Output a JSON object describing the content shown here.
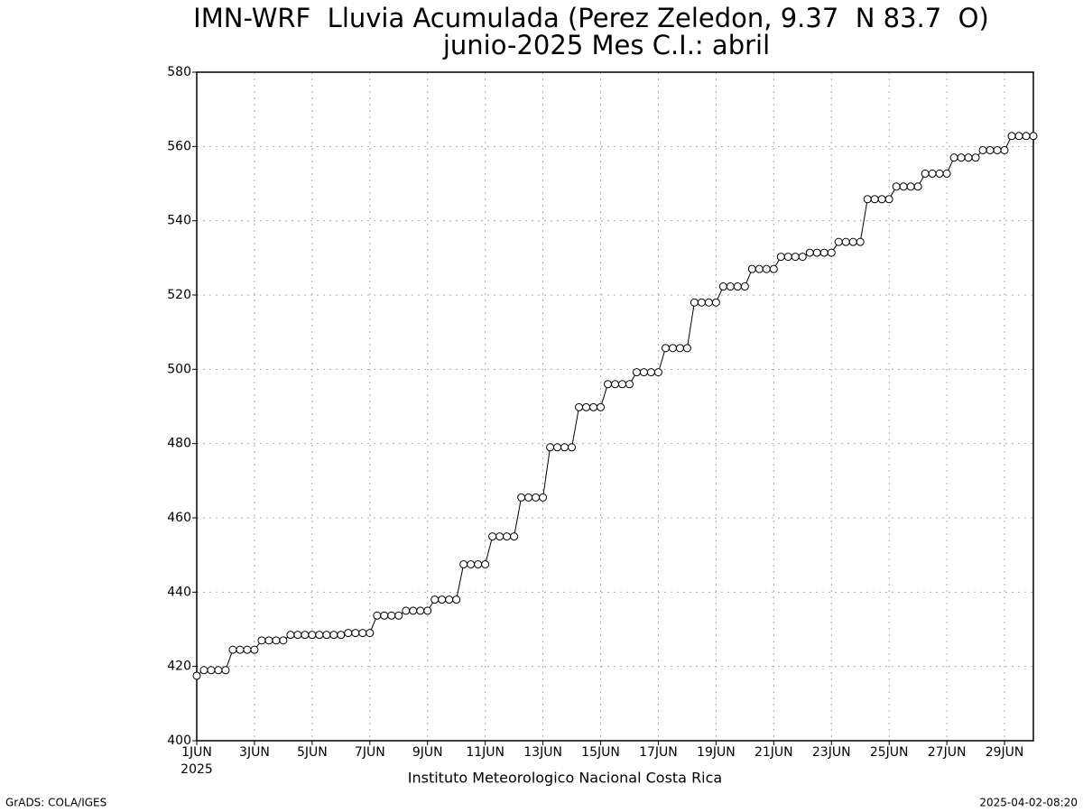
{
  "chart_data": {
    "type": "line",
    "title": "IMN-WRF  Lluvia Acumulada (Perez Zeledon, 9.37  N 83.7  O)",
    "subtitle": "junio-2025 Mes C.I.: abril",
    "year_label": "2025",
    "footer": "Instituto Meteorologico Nacional Costa Rica",
    "credit": "GrADS: COLA/IGES",
    "timestamp": "2025-04-02-08:20",
    "color": "#000000",
    "marker_fill": "#ffffff",
    "grid": true,
    "x": [
      1,
      1.25,
      1.5,
      1.75,
      2,
      2.25,
      2.5,
      2.75,
      3,
      3.25,
      3.5,
      3.75,
      4,
      4.25,
      4.5,
      4.75,
      5,
      5.25,
      5.5,
      5.75,
      6,
      6.25,
      6.5,
      6.75,
      7,
      7.25,
      7.5,
      7.75,
      8,
      8.25,
      8.5,
      8.75,
      9,
      9.25,
      9.5,
      9.75,
      10,
      10.25,
      10.5,
      10.75,
      11,
      11.25,
      11.5,
      11.75,
      12,
      12.25,
      12.5,
      12.75,
      13,
      13.25,
      13.5,
      13.75,
      14,
      14.25,
      14.5,
      14.75,
      15,
      15.25,
      15.5,
      15.75,
      16,
      16.25,
      16.5,
      16.75,
      17,
      17.25,
      17.5,
      17.75,
      18,
      18.25,
      18.5,
      18.75,
      19,
      19.25,
      19.5,
      19.75,
      20,
      20.25,
      20.5,
      20.75,
      21,
      21.25,
      21.5,
      21.75,
      22,
      22.25,
      22.5,
      22.75,
      23,
      23.25,
      23.5,
      23.75,
      24,
      24.25,
      24.5,
      24.75,
      25,
      25.25,
      25.5,
      25.75,
      26,
      26.25,
      26.5,
      26.75,
      27,
      27.25,
      27.5,
      27.75,
      28,
      28.25,
      28.5,
      28.75,
      29,
      29.25,
      29.5,
      29.75,
      30
    ],
    "values": [
      417.5,
      419,
      419,
      419,
      419,
      424.5,
      424.5,
      424.5,
      424.5,
      427,
      427,
      427,
      427,
      428.5,
      428.5,
      428.5,
      428.5,
      428.5,
      428.5,
      428.5,
      428.5,
      429,
      429,
      429,
      429,
      433.7,
      433.7,
      433.7,
      433.7,
      435,
      435,
      435,
      435,
      438,
      438,
      438,
      438,
      447.5,
      447.5,
      447.5,
      447.5,
      455,
      455,
      455,
      455,
      465.5,
      465.5,
      465.5,
      465.5,
      479,
      479,
      479,
      479,
      489.8,
      489.8,
      489.8,
      489.8,
      496,
      496,
      496,
      496,
      499.2,
      499.2,
      499.2,
      499.2,
      505.7,
      505.7,
      505.7,
      505.7,
      518,
      518,
      518,
      518,
      522.3,
      522.3,
      522.3,
      522.3,
      527,
      527,
      527,
      527,
      530.3,
      530.3,
      530.3,
      530.3,
      531.4,
      531.4,
      531.4,
      531.4,
      534.3,
      534.3,
      534.3,
      534.3,
      545.8,
      545.8,
      545.8,
      545.8,
      549.2,
      549.2,
      549.2,
      549.2,
      552.7,
      552.7,
      552.7,
      552.7,
      557,
      557,
      557,
      557,
      559,
      559,
      559,
      559,
      562.8,
      562.8,
      562.8,
      562.8
    ],
    "xlim": [
      1,
      30
    ],
    "xticks": [
      {
        "value": 1,
        "label": "1JUN"
      },
      {
        "value": 3,
        "label": "3JUN"
      },
      {
        "value": 5,
        "label": "5JUN"
      },
      {
        "value": 7,
        "label": "7JUN"
      },
      {
        "value": 9,
        "label": "9JUN"
      },
      {
        "value": 11,
        "label": "11JUN"
      },
      {
        "value": 13,
        "label": "13JUN"
      },
      {
        "value": 15,
        "label": "15JUN"
      },
      {
        "value": 17,
        "label": "17JUN"
      },
      {
        "value": 19,
        "label": "19JUN"
      },
      {
        "value": 21,
        "label": "21JUN"
      },
      {
        "value": 23,
        "label": "23JUN"
      },
      {
        "value": 25,
        "label": "25JUN"
      },
      {
        "value": 27,
        "label": "27JUN"
      },
      {
        "value": 29,
        "label": "29JUN"
      }
    ],
    "ylim": [
      400,
      580
    ],
    "yticks": [
      400,
      420,
      440,
      460,
      480,
      500,
      520,
      540,
      560,
      580
    ]
  }
}
